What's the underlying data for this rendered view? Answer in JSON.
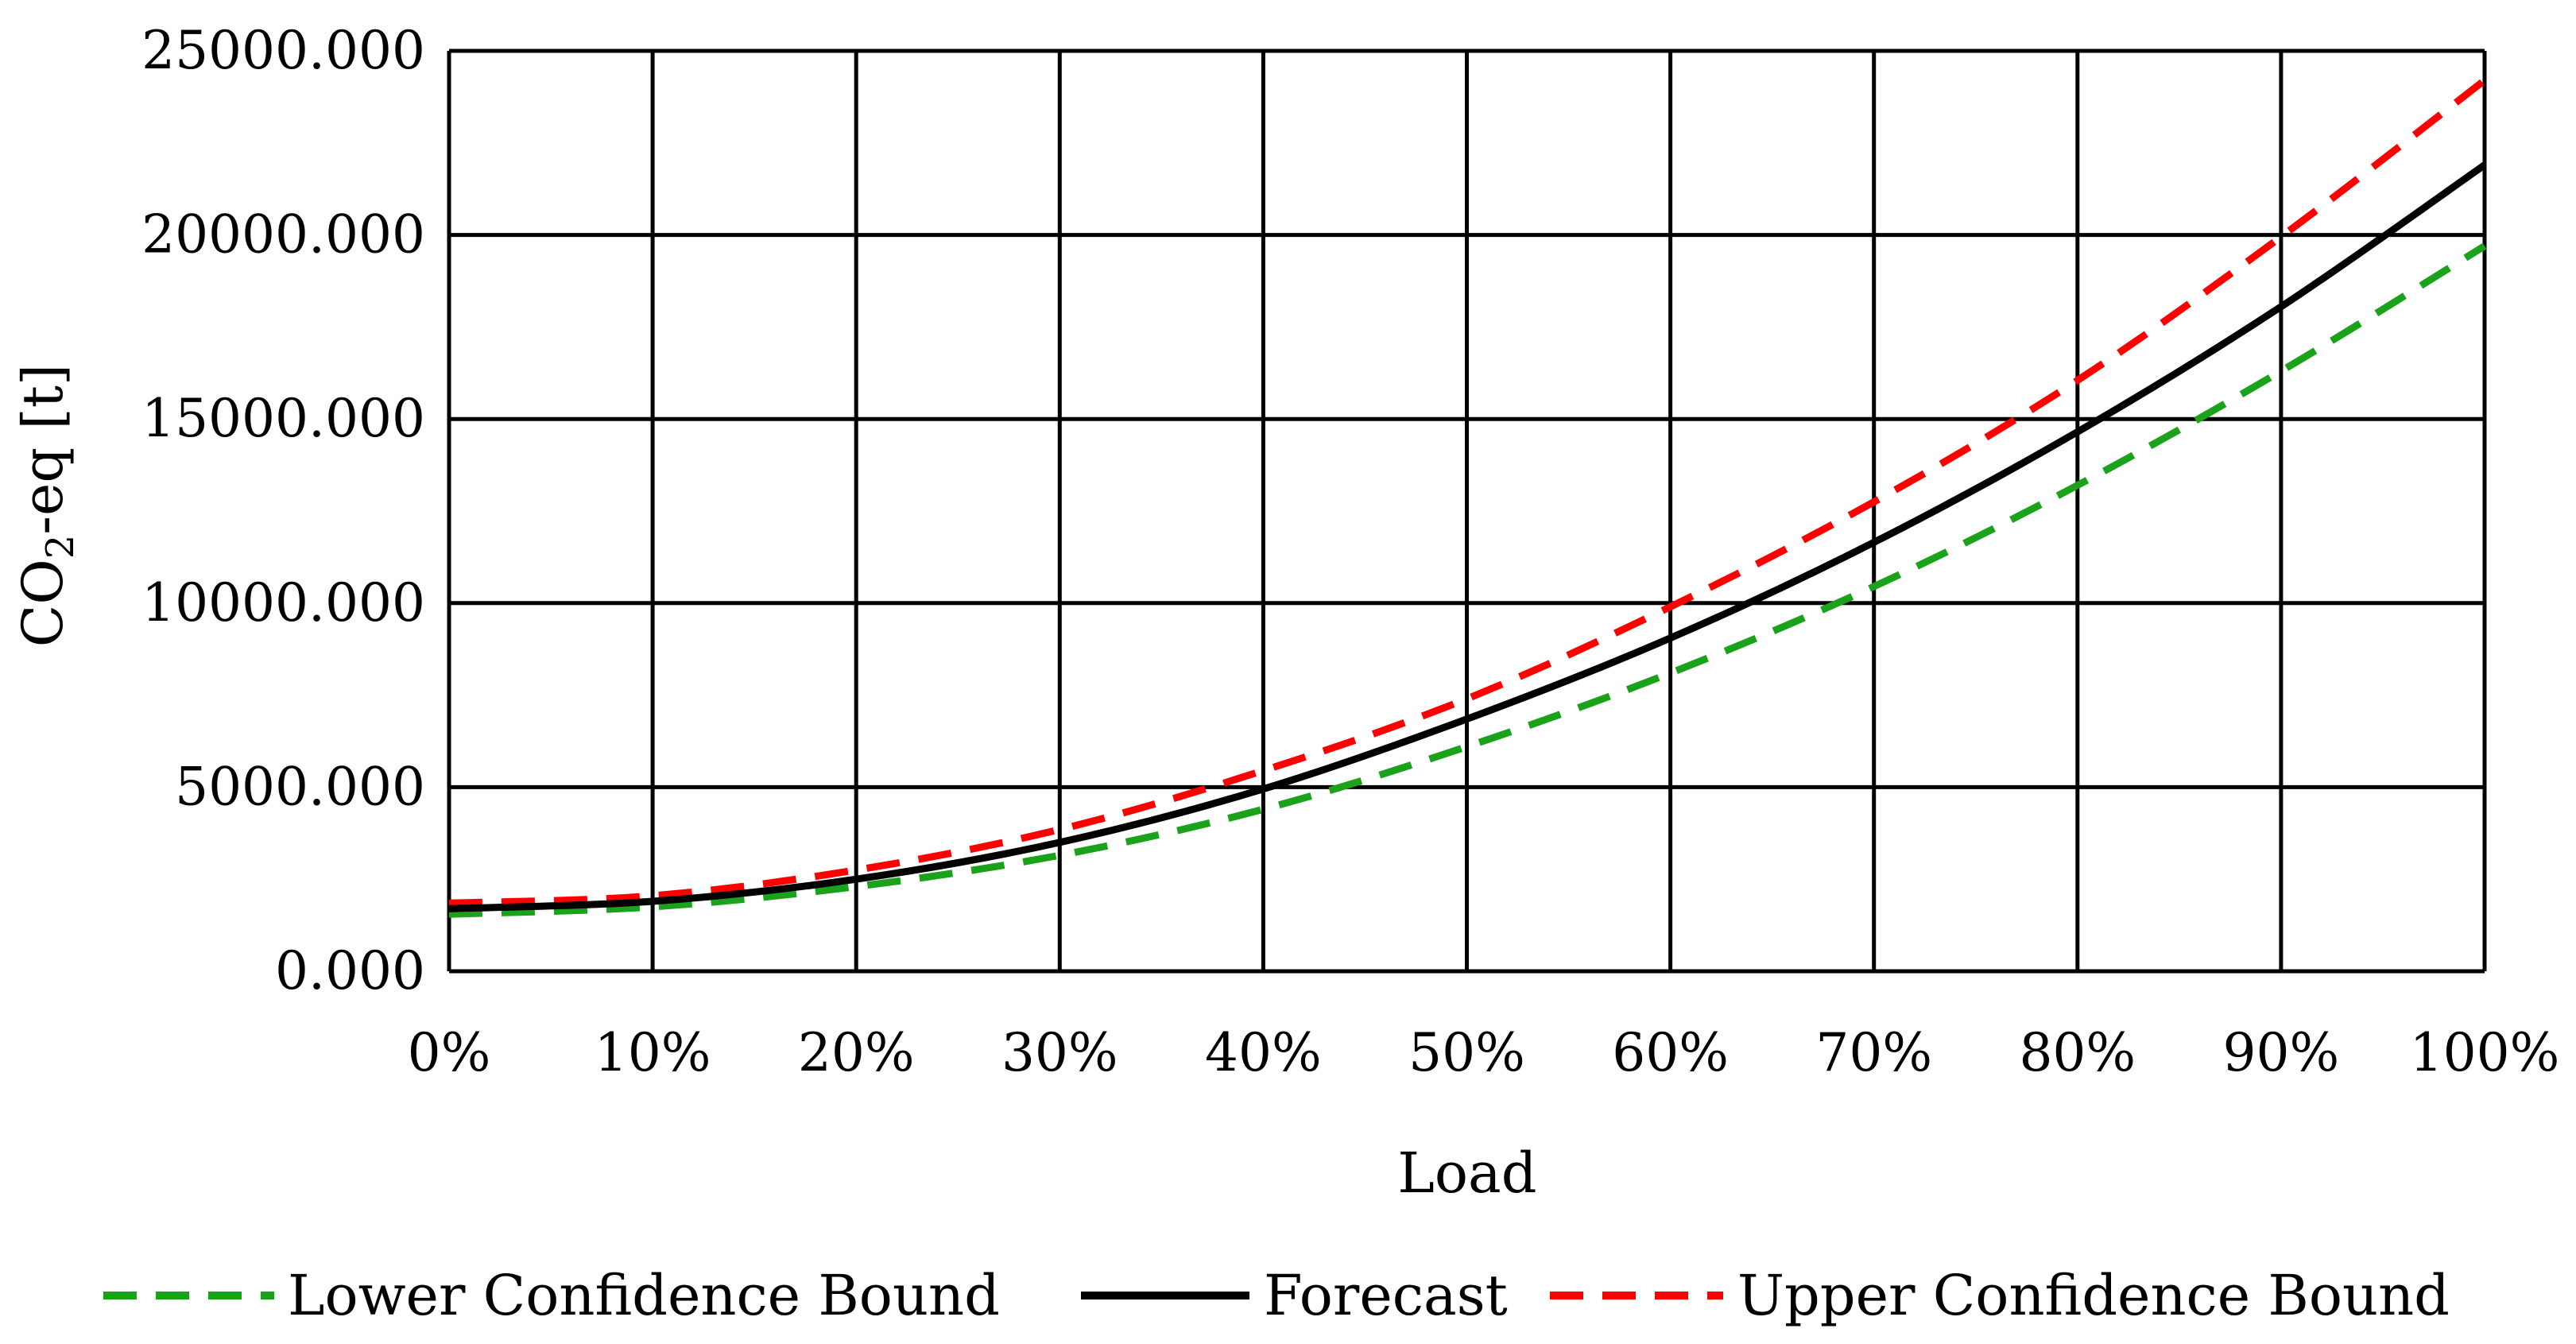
{
  "chart_data": {
    "type": "line",
    "title": "",
    "xlabel": "Load",
    "ylabel_main": "CO",
    "ylabel_sub": "2",
    "ylabel_rest": "-eq [t]",
    "x": [
      0,
      10,
      20,
      30,
      40,
      50,
      60,
      70,
      80,
      90,
      100
    ],
    "x_tick_labels": [
      "0%",
      "10%",
      "20%",
      "30%",
      "40%",
      "50%",
      "60%",
      "70%",
      "80%",
      "90%",
      "100%"
    ],
    "y_ticks": [
      0,
      5000,
      10000,
      15000,
      20000,
      25000
    ],
    "y_tick_labels": [
      "0.000",
      "5000.000",
      "10000.000",
      "15000.000",
      "20000.000",
      "25000.000"
    ],
    "xlim": [
      0,
      100
    ],
    "ylim": [
      0,
      25000
    ],
    "grid": true,
    "legend_position": "bottom",
    "series": [
      {
        "name": "Lower Confidence Bound",
        "color": "#1aa31a",
        "dash": "dashed",
        "values": [
          1550,
          1750,
          2300,
          3150,
          4400,
          6100,
          8100,
          10450,
          13200,
          16300,
          19700
        ]
      },
      {
        "name": "Forecast",
        "color": "#000000",
        "dash": "solid",
        "values": [
          1700,
          1900,
          2500,
          3500,
          4950,
          6850,
          9050,
          11650,
          14650,
          18050,
          21900
        ]
      },
      {
        "name": "Upper Confidence Bound",
        "color": "#ff0000",
        "dash": "dashed",
        "values": [
          1850,
          2050,
          2750,
          3850,
          5450,
          7400,
          9900,
          12750,
          16050,
          19950,
          24200
        ]
      }
    ]
  }
}
